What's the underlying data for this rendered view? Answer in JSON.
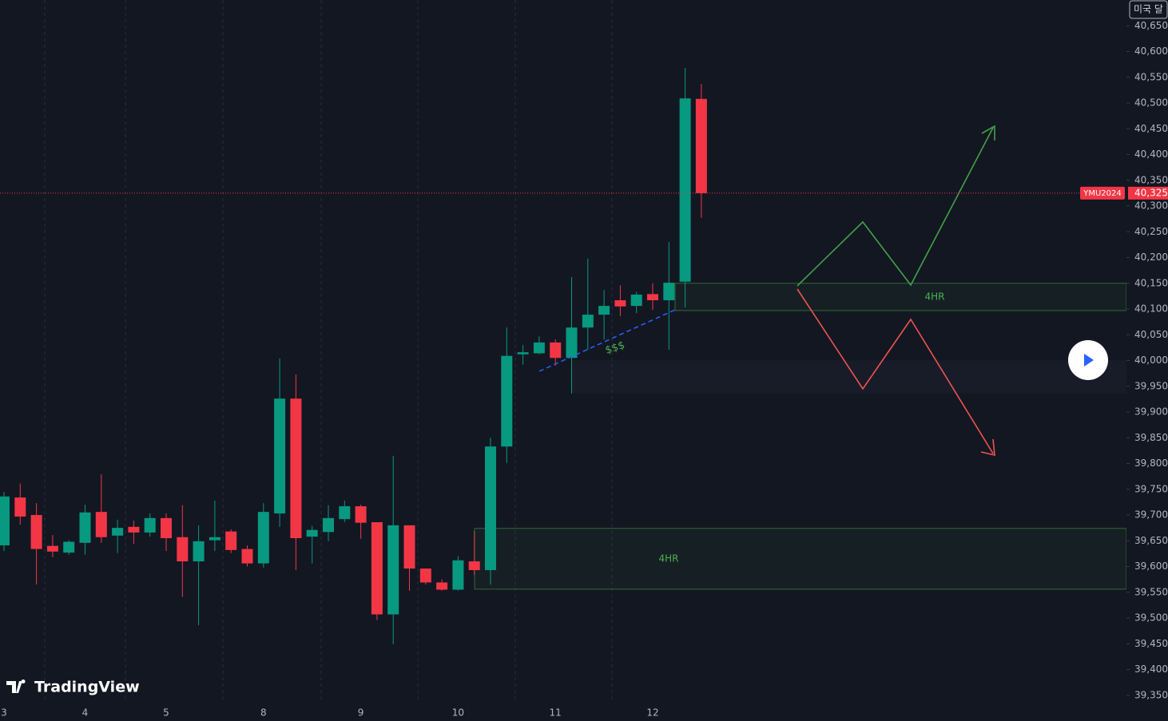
{
  "chart_data": {
    "type": "candlestick",
    "symbol": "YMU2024",
    "currency": "미국 달",
    "brand": "TradingView",
    "annotation": "$$$",
    "up_color": "#089981",
    "down_color": "#f23645",
    "categories": [
      "3",
      null,
      null,
      null,
      null,
      "4",
      null,
      null,
      null,
      null,
      "5",
      null,
      null,
      null,
      null,
      null,
      "8",
      null,
      null,
      null,
      null,
      null,
      "9",
      null,
      null,
      null,
      null,
      null,
      "10",
      null,
      null,
      null,
      null,
      null,
      "11",
      null,
      null,
      null,
      null,
      null,
      "12",
      null,
      null,
      null
    ],
    "open": [
      39641,
      39734,
      39700,
      39640,
      39627,
      39646,
      39706,
      39660,
      39677,
      39666,
      39694,
      39657,
      39610,
      39651,
      39668,
      39634,
      39606,
      39703,
      39926,
      39658,
      39667,
      39692,
      39717,
      39686,
      39507,
      39680,
      39596,
      39569,
      39555,
      39610,
      39593,
      39833,
      40012,
      40014,
      40035,
      40005,
      40064,
      40089,
      40117,
      40106,
      40129,
      40117,
      40153,
      40508
    ],
    "high": [
      39745,
      39761,
      39723,
      39661,
      39651,
      39720,
      39779,
      39691,
      39689,
      39703,
      39703,
      39719,
      39680,
      39728,
      39672,
      39641,
      39723,
      40004,
      39973,
      39679,
      39719,
      39728,
      39720,
      39686,
      39815,
      39680,
      39596,
      39575,
      39620,
      39669,
      39850,
      40064,
      40030,
      40047,
      40041,
      40162,
      40198,
      40137,
      40146,
      40133,
      40150,
      40230,
      40568,
      40537
    ],
    "low": [
      39630,
      39681,
      39565,
      39618,
      39623,
      39623,
      39646,
      39626,
      39644,
      39658,
      39630,
      39541,
      39486,
      39630,
      39626,
      39600,
      39598,
      39677,
      39593,
      39606,
      39649,
      39686,
      39654,
      39496,
      39449,
      39553,
      39565,
      39553,
      39553,
      39584,
      39565,
      39801,
      39992,
      40012,
      39990,
      39936,
      40021,
      40041,
      40086,
      40092,
      40098,
      40021,
      40103,
      40277
    ],
    "close": [
      39736,
      39697,
      39634,
      39629,
      39648,
      39705,
      39657,
      39675,
      39666,
      39694,
      39655,
      39610,
      39649,
      39657,
      39632,
      39606,
      39706,
      39926,
      39655,
      39671,
      39694,
      39717,
      39685,
      39507,
      39680,
      39596,
      39569,
      39555,
      39612,
      39593,
      39833,
      40009,
      40016,
      40035,
      40005,
      40064,
      40089,
      40106,
      40105,
      40128,
      40117,
      40151,
      40509,
      40325
    ],
    "last_price": {
      "value": 40325,
      "label": "40,325"
    },
    "zones": [
      {
        "label": "4HR",
        "range": [
          40097,
          40150
        ]
      },
      {
        "range": [
          39936,
          40000
        ]
      },
      {
        "label": "4HR",
        "range": [
          39556,
          39674
        ]
      }
    ],
    "ylim": [
      39300,
      40700
    ],
    "yticks": [
      {
        "value": 39350,
        "label": "39,350"
      },
      {
        "value": 39400,
        "label": "39,400"
      },
      {
        "value": 39450,
        "label": "39,450"
      },
      {
        "value": 39500,
        "label": "39,500"
      },
      {
        "value": 39550,
        "label": "39,550"
      },
      {
        "value": 39600,
        "label": "39,600"
      },
      {
        "value": 39650,
        "label": "39,650"
      },
      {
        "value": 39700,
        "label": "39,700"
      },
      {
        "value": 39750,
        "label": "39,750"
      },
      {
        "value": 39800,
        "label": "39,800"
      },
      {
        "value": 39850,
        "label": "39,850"
      },
      {
        "value": 39900,
        "label": "39,900"
      },
      {
        "value": 39950,
        "label": "39,950"
      },
      {
        "value": 40000,
        "label": "40,000"
      },
      {
        "value": 40050,
        "label": "40,050"
      },
      {
        "value": 40100,
        "label": "40,100"
      },
      {
        "value": 40150,
        "label": "40,150"
      },
      {
        "value": 40200,
        "label": "40,200"
      },
      {
        "value": 40250,
        "label": "40,250"
      },
      {
        "value": 40300,
        "label": "40,300"
      },
      {
        "value": 40350,
        "label": "40,350"
      },
      {
        "value": 40400,
        "label": "40,400"
      },
      {
        "value": 40450,
        "label": "40,450"
      },
      {
        "value": 40500,
        "label": "40,500"
      },
      {
        "value": 40550,
        "label": "40,550"
      },
      {
        "value": 40600,
        "label": "40,600"
      },
      {
        "value": 40650,
        "label": "40,650"
      }
    ]
  }
}
